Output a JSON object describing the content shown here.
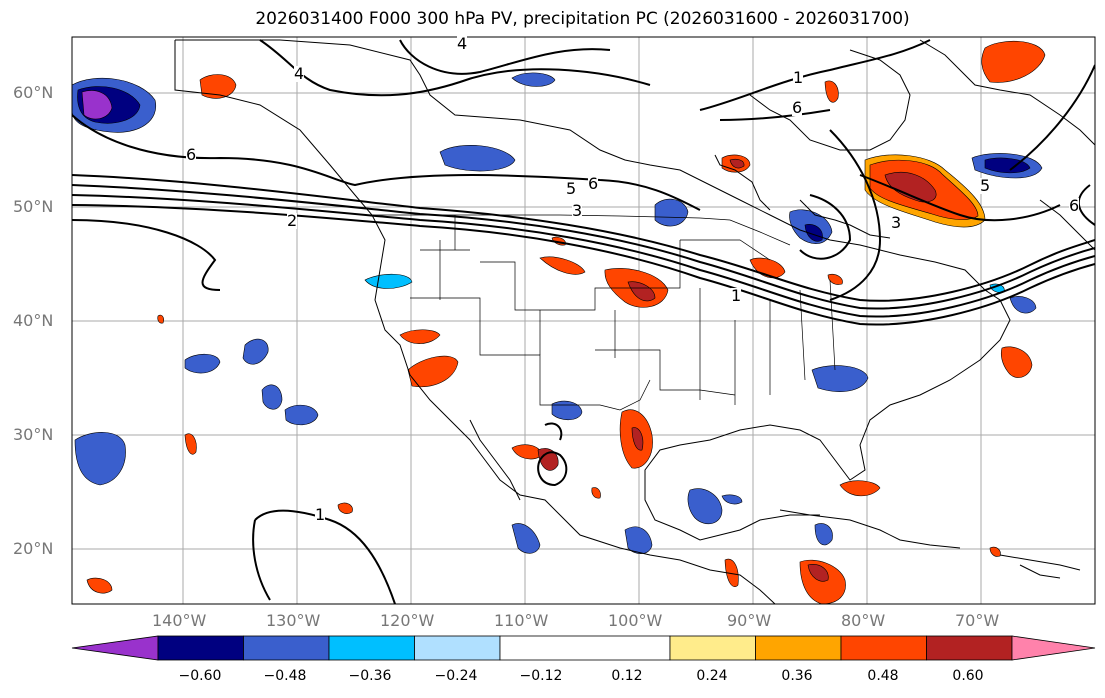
{
  "title": "2026031400 F000 300 hPa PV, precipitation PC (2026031600 - 2026031700)",
  "latitude_ticks": [
    "60°N",
    "50°N",
    "40°N",
    "30°N",
    "20°N"
  ],
  "longitude_ticks": [
    "140°W",
    "130°W",
    "120°W",
    "110°W",
    "100°W",
    "90°W",
    "80°W",
    "70°W"
  ],
  "pv_contour_labels": [
    "4",
    "4",
    "1",
    "6",
    "6",
    "6",
    "5",
    "5",
    "3",
    "3",
    "2",
    "1",
    "6",
    "1"
  ],
  "colorbar": {
    "tick_labels": [
      "−0.60",
      "−0.48",
      "−0.36",
      "−0.24",
      "−0.12",
      "0.12",
      "0.24",
      "0.36",
      "0.48",
      "0.60"
    ],
    "colors": [
      "#9932CC",
      "#000080",
      "#3A5FCD",
      "#00BFFF",
      "#B0E0FF",
      "#FFFFFF",
      "#FFEC8B",
      "#FFA500",
      "#FF4500",
      "#B22222",
      "#FF82AB"
    ]
  }
}
